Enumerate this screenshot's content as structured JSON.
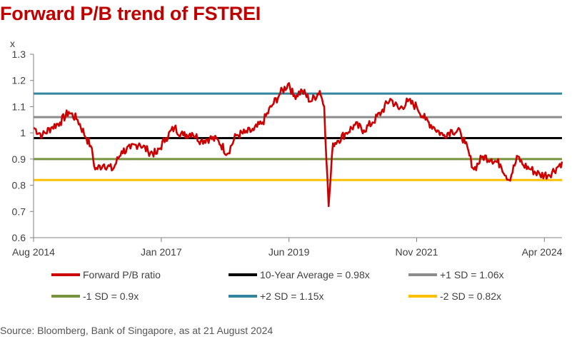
{
  "title": "Forward P/B trend of FSTREI",
  "source": "Source: Bloomberg, Bank of Singapore, as at 21 August 2024",
  "colors": {
    "series": "#cc0000",
    "avg": "#000000",
    "plus1": "#8c8c8c",
    "minus1": "#77933c",
    "plus2": "#31859c",
    "minus2": "#ffc000",
    "axis": "#808080",
    "text": "#404040"
  },
  "chart_data": {
    "type": "line",
    "title": "Forward P/B trend of FSTREI",
    "ylabel": "x",
    "xlabel": "",
    "ylim": [
      0.6,
      1.3
    ],
    "xlim": [
      "2014-08",
      "2024-08"
    ],
    "yticks": [
      0.6,
      0.7,
      0.8,
      0.9,
      1.0,
      1.1,
      1.2,
      1.3
    ],
    "ytick_labels": [
      "0.6",
      "0.7",
      "0.8",
      "0.9",
      "1",
      "1.1",
      "1.2",
      "1.3"
    ],
    "xticks": [
      {
        "value": "2014-08",
        "label": "Aug 2014"
      },
      {
        "value": "2017-01",
        "label": "Jan 2017"
      },
      {
        "value": "2019-06",
        "label": "Jun 2019"
      },
      {
        "value": "2021-11",
        "label": "Nov 2021"
      },
      {
        "value": "2024-04",
        "label": "Apr 2024"
      }
    ],
    "grid": false,
    "legend_position": "bottom",
    "series": [
      {
        "name": "Forward P/B ratio",
        "x": [
          "2014-08",
          "2014-10",
          "2014-12",
          "2015-02",
          "2015-04",
          "2015-06",
          "2015-08",
          "2015-09",
          "2015-10",
          "2015-12",
          "2016-02",
          "2016-04",
          "2016-06",
          "2016-08",
          "2016-10",
          "2016-12",
          "2017-02",
          "2017-04",
          "2017-06",
          "2017-08",
          "2017-10",
          "2017-12",
          "2018-02",
          "2018-04",
          "2018-06",
          "2018-08",
          "2018-10",
          "2018-12",
          "2019-02",
          "2019-04",
          "2019-06",
          "2019-07",
          "2019-09",
          "2019-11",
          "2020-01",
          "2020-02",
          "2020-03",
          "2020-04",
          "2020-05",
          "2020-07",
          "2020-09",
          "2020-11",
          "2021-01",
          "2021-03",
          "2021-05",
          "2021-07",
          "2021-09",
          "2021-11",
          "2022-01",
          "2022-03",
          "2022-05",
          "2022-07",
          "2022-09",
          "2022-10",
          "2022-12",
          "2023-02",
          "2023-04",
          "2023-06",
          "2023-08",
          "2023-10",
          "2023-11",
          "2024-01",
          "2024-03",
          "2024-05",
          "2024-07",
          "2024-08"
        ],
        "y": [
          1.02,
          0.99,
          1.02,
          1.04,
          1.08,
          1.05,
          0.98,
          0.95,
          0.86,
          0.88,
          0.86,
          0.93,
          0.94,
          0.96,
          0.93,
          0.92,
          0.98,
          1.02,
          0.99,
          1.0,
          0.97,
          0.98,
          0.97,
          0.92,
          0.99,
          1.0,
          1.01,
          1.04,
          1.1,
          1.15,
          1.19,
          1.14,
          1.16,
          1.12,
          1.16,
          1.1,
          0.72,
          0.96,
          0.97,
          1.0,
          1.03,
          1.01,
          1.04,
          1.08,
          1.13,
          1.09,
          1.12,
          1.1,
          1.05,
          1.02,
          0.99,
          1.01,
          1.0,
          0.96,
          0.86,
          0.91,
          0.9,
          0.88,
          0.82,
          0.91,
          0.88,
          0.86,
          0.84,
          0.84,
          0.87,
          0.89
        ]
      }
    ],
    "reference_lines": [
      {
        "name": "10-Year Average = 0.98x",
        "value": 0.98,
        "color_key": "avg"
      },
      {
        "name": "+1 SD = 1.06x",
        "value": 1.06,
        "color_key": "plus1"
      },
      {
        "name": "-1 SD = 0.9x",
        "value": 0.9,
        "color_key": "minus1"
      },
      {
        "name": "+2 SD = 1.15x",
        "value": 1.15,
        "color_key": "plus2"
      },
      {
        "name": "-2 SD = 0.82x",
        "value": 0.82,
        "color_key": "minus2"
      }
    ]
  }
}
